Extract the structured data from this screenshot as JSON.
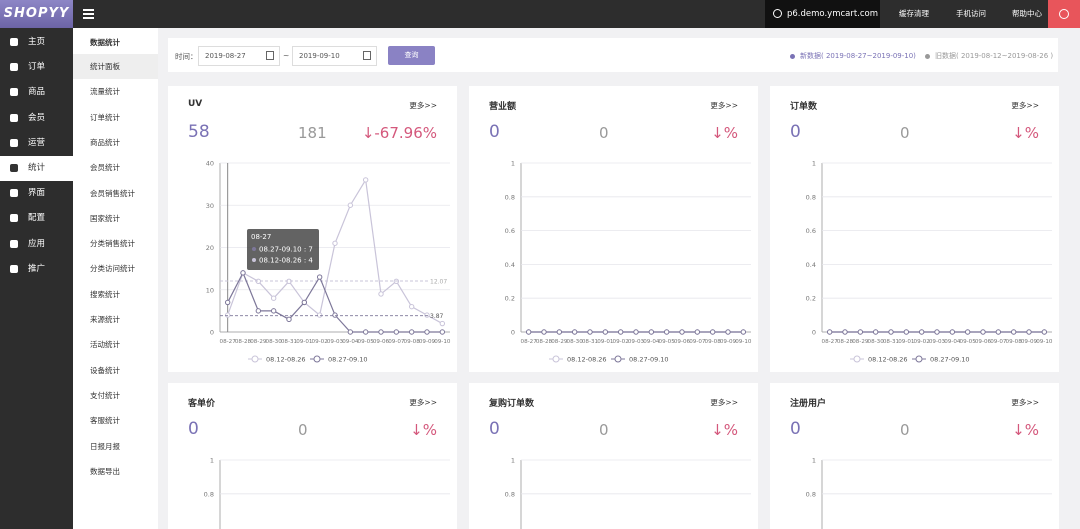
{
  "topbar": {
    "logo": "SHOPYY",
    "domain": "p6.demo.ymcart.com",
    "links": [
      "缓存清理",
      "手机访问",
      "帮助中心"
    ]
  },
  "nav": [
    "主页",
    "订单",
    "商品",
    "会员",
    "运营",
    "统计",
    "界面",
    "配置",
    "应用",
    "推广"
  ],
  "nav_active": 5,
  "subnav": {
    "title": "数据统计",
    "items": [
      "统计面板",
      "流量统计",
      "订单统计",
      "商品统计",
      "会员统计",
      "会员销售统计",
      "国家统计",
      "分类销售统计",
      "分类访问统计",
      "搜索统计",
      "来源统计",
      "活动统计",
      "设备统计",
      "支付统计",
      "客服统计",
      "日报月报",
      "数据导出"
    ],
    "active": 0
  },
  "filter": {
    "label": "时间：",
    "start": "2019-08-27",
    "sep": "~",
    "end": "2019-09-10",
    "button": "查询",
    "legend_new": "新数据( 2019-08-27~2019-09-10)",
    "legend_old": "旧数据( 2019-08-12~2019-08-26 )"
  },
  "cards": [
    {
      "title": "UV",
      "more": "更多>>",
      "current": 58,
      "previous": 181,
      "change": "↓-67.96%",
      "chart": {
        "type": "line",
        "categories": [
          "08-27",
          "08-28",
          "08-29",
          "08-30",
          "08-31",
          "09-01",
          "09-02",
          "09-03",
          "09-04",
          "09-05",
          "09-06",
          "09-07",
          "09-08",
          "09-09",
          "09-10"
        ],
        "series": [
          {
            "name": "08.12-08.26",
            "color": "#c9c4d9",
            "values": [
              4,
              14,
              12,
              8,
              12,
              7,
              4,
              21,
              30,
              36,
              9,
              12,
              6,
              4,
              2
            ],
            "average": 12.07
          },
          {
            "name": "08.27-09.10",
            "color": "#7d7799",
            "values": [
              7,
              14,
              5,
              5,
              3,
              7,
              13,
              4,
              0,
              0,
              0,
              0,
              0,
              0,
              0
            ],
            "average": 3.87
          }
        ],
        "ylim": [
          0,
          40
        ],
        "yticks": [
          0,
          10,
          20,
          30,
          40
        ],
        "tooltip": {
          "title": "08-27",
          "lines": [
            "08.27-09.10 : 7",
            "08.12-08.26 : 4"
          ],
          "index": 0
        }
      }
    },
    {
      "title": "营业额",
      "more": "更多>>",
      "current": 0,
      "previous": 0,
      "change": "↓%",
      "chart": {
        "type": "line",
        "categories": [
          "08-27",
          "08-28",
          "08-29",
          "08-30",
          "08-31",
          "09-01",
          "09-02",
          "09-03",
          "09-04",
          "09-05",
          "09-06",
          "09-07",
          "09-08",
          "09-09",
          "09-10"
        ],
        "series": [
          {
            "name": "08.12-08.26",
            "color": "#c9c4d9",
            "values": [
              0,
              0,
              0,
              0,
              0,
              0,
              0,
              0,
              0,
              0,
              0,
              0,
              0,
              0,
              0
            ]
          },
          {
            "name": "08.27-09.10",
            "color": "#7d7799",
            "values": [
              0,
              0,
              0,
              0,
              0,
              0,
              0,
              0,
              0,
              0,
              0,
              0,
              0,
              0,
              0
            ]
          }
        ],
        "ylim": [
          0,
          1
        ],
        "yticks": [
          0,
          0.2,
          0.4,
          0.6,
          0.8,
          1
        ]
      }
    },
    {
      "title": "订单数",
      "more": "更多>>",
      "current": 0,
      "previous": 0,
      "change": "↓%",
      "chart": {
        "type": "line",
        "categories": [
          "08-27",
          "08-28",
          "08-29",
          "08-30",
          "08-31",
          "09-01",
          "09-02",
          "09-03",
          "09-04",
          "09-05",
          "09-06",
          "09-07",
          "09-08",
          "09-09",
          "09-10"
        ],
        "series": [
          {
            "name": "08.12-08.26",
            "color": "#c9c4d9",
            "values": [
              0,
              0,
              0,
              0,
              0,
              0,
              0,
              0,
              0,
              0,
              0,
              0,
              0,
              0,
              0
            ]
          },
          {
            "name": "08.27-09.10",
            "color": "#7d7799",
            "values": [
              0,
              0,
              0,
              0,
              0,
              0,
              0,
              0,
              0,
              0,
              0,
              0,
              0,
              0,
              0
            ]
          }
        ],
        "ylim": [
          0,
          1
        ],
        "yticks": [
          0,
          0.2,
          0.4,
          0.6,
          0.8,
          1
        ]
      }
    },
    {
      "title": "客单价",
      "more": "更多>>",
      "current": 0,
      "previous": 0,
      "change": "↓%",
      "chart": {
        "type": "line",
        "ylim": [
          0,
          1
        ],
        "yticks": [
          0.8,
          1
        ]
      }
    },
    {
      "title": "复购订单数",
      "more": "更多>>",
      "current": 0,
      "previous": 0,
      "change": "↓%",
      "chart": {
        "type": "line",
        "ylim": [
          0,
          1
        ],
        "yticks": [
          0.8,
          1
        ]
      }
    },
    {
      "title": "注册用户",
      "more": "更多>>",
      "current": 0,
      "previous": 0,
      "change": "↓%",
      "chart": {
        "type": "line",
        "ylim": [
          0,
          1
        ],
        "yticks": [
          0.8,
          1
        ]
      }
    }
  ]
}
